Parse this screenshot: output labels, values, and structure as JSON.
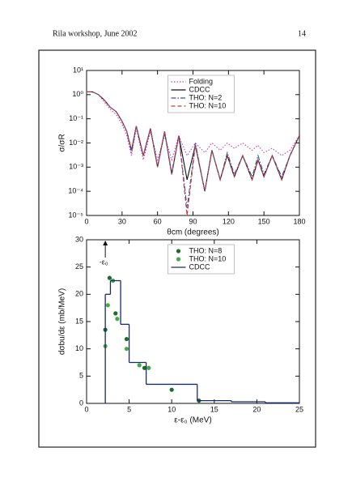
{
  "header": {
    "left": "Rila workshop, June 2002",
    "page": "14"
  },
  "chart_data": [
    {
      "type": "line",
      "xlabel": "θcm (degrees)",
      "ylabel": "σ/σR",
      "ylog": true,
      "legend": "upper center",
      "xlim": [
        0,
        180
      ],
      "xticks": [
        0,
        30,
        60,
        90,
        120,
        150,
        180
      ],
      "ylim": [
        1e-05,
        10
      ],
      "yticks": [
        {
          "value": 1e-05,
          "label": "10⁻⁵"
        },
        {
          "value": 0.0001,
          "label": "10⁻⁴"
        },
        {
          "value": 0.001,
          "label": "10⁻³"
        },
        {
          "value": 0.01,
          "label": "10⁻²"
        },
        {
          "value": 0.1,
          "label": "10⁻¹"
        },
        {
          "value": 1,
          "label": "10⁰"
        },
        {
          "value": 10,
          "label": "10¹"
        }
      ],
      "x": [
        0,
        5,
        10,
        15,
        20,
        25,
        30,
        34,
        38,
        42,
        48,
        54,
        60,
        66,
        72,
        78,
        85,
        92,
        100,
        106,
        113,
        119,
        125,
        132,
        140,
        145,
        150,
        157,
        165,
        172,
        180
      ],
      "series": [
        {
          "name": "Folding",
          "color": "#c040c0",
          "dash": "dotted",
          "values": [
            1.3,
            1.3,
            1.0,
            0.5,
            0.25,
            0.15,
            0.06,
            0.02,
            0.003,
            0.04,
            0.002,
            0.03,
            0.002,
            0.02,
            0.002,
            0.02,
            0.003,
            0.01,
            0.004,
            0.01,
            0.005,
            0.01,
            0.006,
            0.01,
            0.005,
            0.008,
            0.004,
            0.006,
            0.003,
            0.005,
            0.02
          ]
        },
        {
          "name": "CDCC",
          "color": "#111111",
          "dash": "solid",
          "values": [
            1.3,
            1.3,
            1.0,
            0.6,
            0.3,
            0.2,
            0.08,
            0.03,
            0.005,
            0.05,
            0.003,
            0.04,
            0.001,
            0.03,
            0.0005,
            0.02,
            0.0003,
            0.008,
            0.0001,
            0.005,
            0.0003,
            0.003,
            0.0004,
            0.003,
            0.0003,
            0.002,
            0.0004,
            0.003,
            0.0003,
            0.003,
            0.02
          ]
        },
        {
          "name": "THO: N=2",
          "color": "#3355aa",
          "dash": "dashdot",
          "values": [
            1.3,
            1.3,
            1.0,
            0.6,
            0.3,
            0.2,
            0.08,
            0.03,
            0.004,
            0.05,
            0.003,
            0.04,
            0.001,
            0.03,
            0.0006,
            0.02,
            2e-05,
            0.01,
            0.0001,
            0.005,
            0.0003,
            0.004,
            0.0005,
            0.003,
            0.0004,
            0.003,
            0.0005,
            0.003,
            0.0004,
            0.003,
            0.02
          ]
        },
        {
          "name": "THO: N=10",
          "color": "#c83a3a",
          "dash": "dashed",
          "values": [
            1.3,
            1.3,
            1.0,
            0.6,
            0.3,
            0.2,
            0.08,
            0.03,
            0.005,
            0.05,
            0.003,
            0.04,
            0.001,
            0.03,
            0.0005,
            0.02,
            1e-05,
            0.008,
            0.0001,
            0.005,
            0.0003,
            0.003,
            0.0004,
            0.003,
            0.0003,
            0.002,
            0.0004,
            0.003,
            0.0003,
            0.003,
            0.02
          ]
        }
      ]
    },
    {
      "type": "scatter",
      "xlabel": "ε-ε₀ (MeV)",
      "ylabel": "dσbu/dε (mb/MeV)",
      "legend": "upper center",
      "xlim": [
        0,
        25
      ],
      "xticks": [
        0,
        5,
        10,
        15,
        20,
        25
      ],
      "ylim": [
        0,
        30
      ],
      "yticks": [
        0,
        5,
        10,
        15,
        20,
        25,
        30
      ],
      "annotation": {
        "text": "-ε₀",
        "x": 2.2
      },
      "series": [
        {
          "name": "THO: N=8",
          "color": "#1f6b2a",
          "x": [
            2.2,
            2.7,
            3.4,
            4.7,
            6.8,
            10,
            13.2
          ],
          "values": [
            13.5,
            23,
            16.5,
            11.8,
            6.5,
            2.5,
            0.5
          ]
        },
        {
          "name": "THO: N=10",
          "color": "#46a846",
          "x": [
            2.2,
            2.5,
            3.1,
            3.6,
            4.7,
            6.2,
            7.3
          ],
          "values": [
            10.5,
            18,
            22.5,
            15.5,
            10,
            7,
            6.5
          ]
        },
        {
          "name": "CDCC",
          "color": "#1a2a6b",
          "type": "step",
          "bins": [
            2.2,
            2.8,
            4,
            5,
            7,
            13,
            17,
            21,
            25
          ],
          "values": [
            20,
            22.5,
            14.5,
            7.5,
            3.5,
            0.5,
            0.3,
            0.1
          ]
        }
      ]
    }
  ]
}
